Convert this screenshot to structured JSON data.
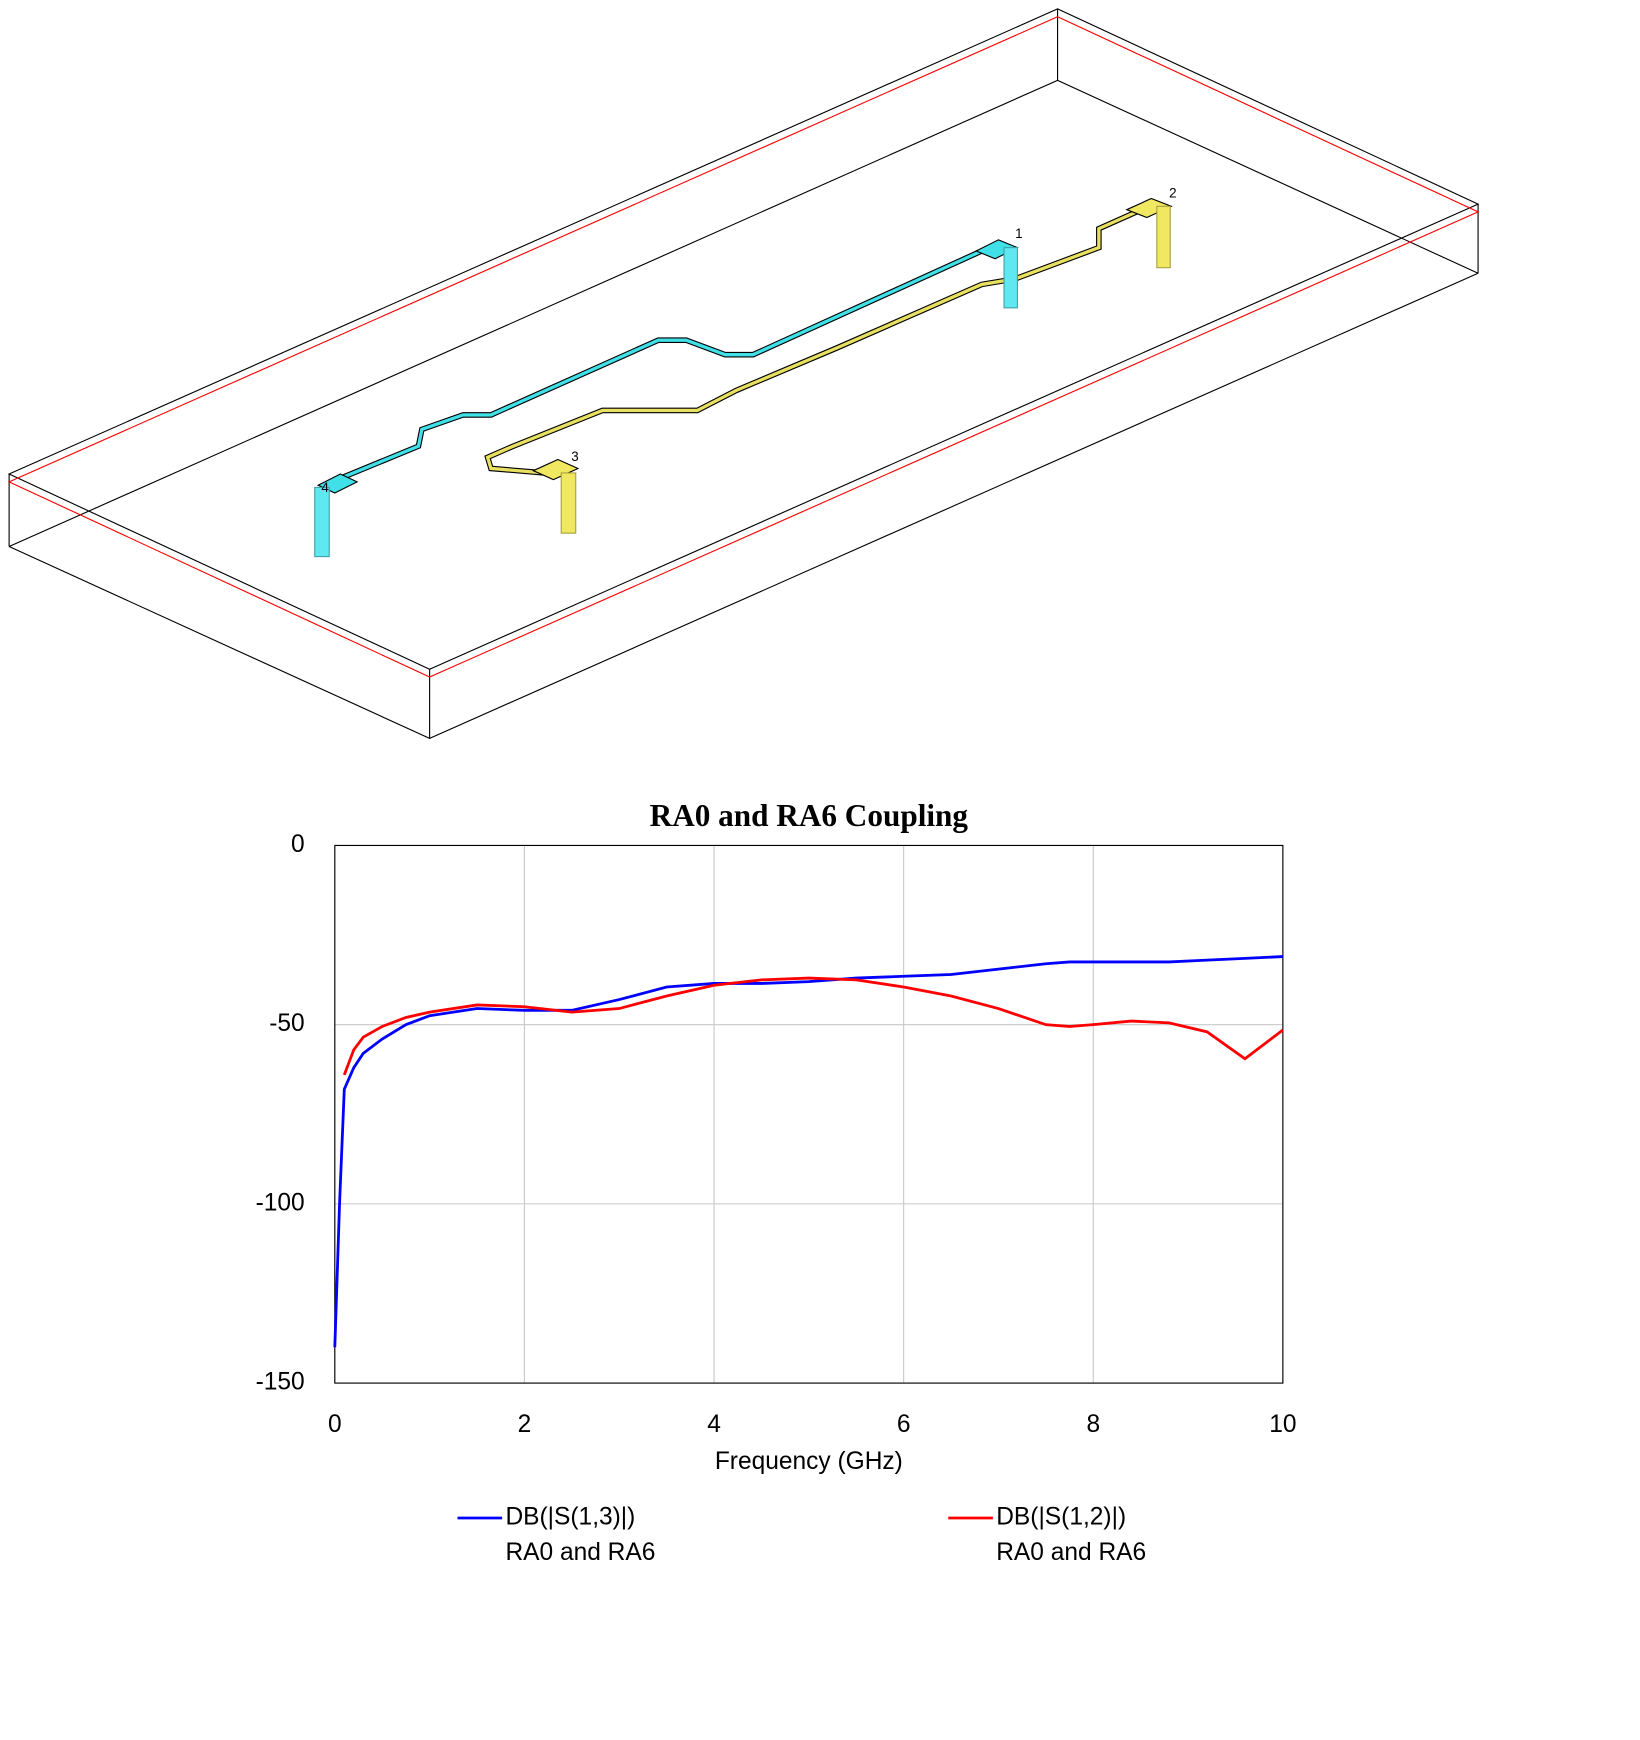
{
  "port_labels": [
    "1",
    "2",
    "3",
    "4"
  ],
  "chart_data": {
    "type": "line",
    "title": "RA0 and RA6 Coupling",
    "x_label": "Frequency (GHz)",
    "x": [
      0,
      0.05,
      0.1,
      0.2,
      0.3,
      0.5,
      0.75,
      1,
      1.5,
      2,
      2.5,
      3,
      3.5,
      4,
      4.5,
      5,
      5.5,
      6,
      6.5,
      7,
      7.5,
      7.75,
      8,
      8.4,
      8.8,
      9.2,
      9.6,
      10
    ],
    "series": [
      {
        "name": "DB(|S(1,3)|)",
        "document": "RA0 and RA6",
        "color": "#0000ff",
        "values": [
          -140,
          -100,
          -68,
          -62,
          -58,
          -54,
          -50,
          -47.5,
          -45.5,
          -46,
          -46,
          -43,
          -39.5,
          -38.5,
          -38.5,
          -38,
          -37,
          -36.5,
          -36,
          -34.5,
          -33,
          -32.5,
          -32.5,
          -32.5,
          -32.5,
          -32,
          -31.5,
          -31
        ]
      },
      {
        "name": "DB(|S(1,2)|)",
        "document": "RA0 and RA6",
        "color": "#ff0000",
        "values": [
          null,
          null,
          -64,
          -57,
          -53.5,
          -50.5,
          -48,
          -46.5,
          -44.5,
          -45,
          -46.5,
          -45.5,
          -42,
          -39,
          -37.5,
          -37,
          -37.5,
          -39.5,
          -42,
          -45.5,
          -50,
          -50.5,
          -50,
          -49,
          -49.5,
          -52,
          -59.5,
          -51.5
        ]
      }
    ],
    "xlim": [
      0,
      10
    ],
    "xticks": [
      0,
      2,
      4,
      6,
      8,
      10
    ],
    "ylim": [
      -150,
      0
    ],
    "yticks": [
      0,
      -50,
      -100,
      -150
    ],
    "grid": true
  }
}
